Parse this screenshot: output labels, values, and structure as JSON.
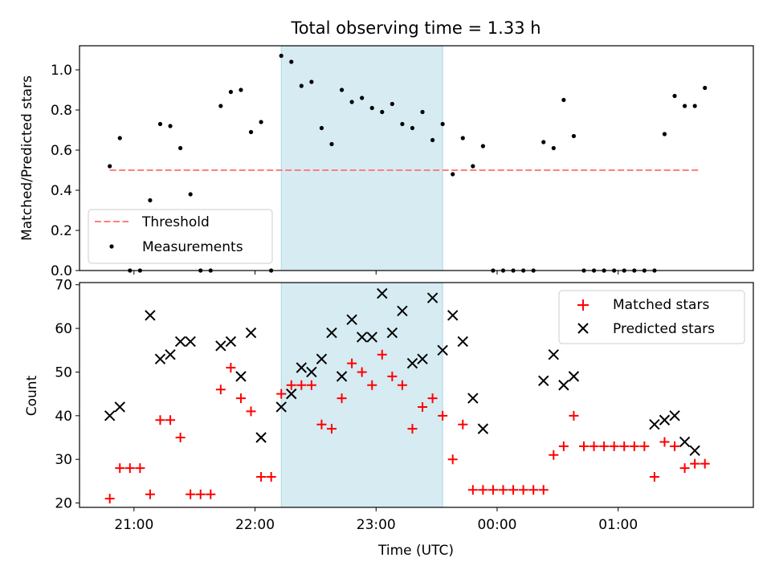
{
  "chart_data": [
    {
      "type": "scatter",
      "title": "Total observing time = 1.33 h",
      "ylabel": "Matched/Predicted stars",
      "xlim": [
        "20:33",
        "26:07"
      ],
      "ylim": [
        0,
        1.12
      ],
      "x_ticks": [
        "21:00",
        "22:00",
        "23:00",
        "00:00",
        "01:00"
      ],
      "y_ticks": [
        "0.0",
        "0.2",
        "0.4",
        "0.6",
        "0.8",
        "1.0"
      ],
      "highlight_span": [
        "22:13",
        "23:33"
      ],
      "highlight_color": "#add8e6",
      "legend_position": "lower-left",
      "threshold": {
        "name": "Threshold",
        "value": 0.5,
        "x_range": [
          "20:48",
          "25:41"
        ],
        "color": "#ff7f7f",
        "style": "dashed"
      },
      "series": [
        {
          "name": "Measurements",
          "color": "#000000",
          "marker": "dot",
          "x": [
            "20:48",
            "20:53",
            "20:58",
            "21:03",
            "21:08",
            "21:13",
            "21:18",
            "21:23",
            "21:28",
            "21:33",
            "21:38",
            "21:43",
            "21:48",
            "21:53",
            "21:58",
            "22:03",
            "22:08",
            "22:13",
            "22:18",
            "22:23",
            "22:28",
            "22:33",
            "22:38",
            "22:43",
            "22:48",
            "22:53",
            "22:58",
            "23:03",
            "23:08",
            "23:13",
            "23:18",
            "23:23",
            "23:28",
            "23:33",
            "23:38",
            "23:43",
            "23:48",
            "23:53",
            "23:58",
            "24:03",
            "24:08",
            "24:13",
            "24:18",
            "24:23",
            "24:28",
            "24:33",
            "24:38",
            "24:43",
            "24:48",
            "24:53",
            "24:58",
            "25:03",
            "25:08",
            "25:13",
            "25:18",
            "25:23",
            "25:28",
            "25:33",
            "25:38",
            "25:43"
          ],
          "y": [
            0.52,
            0.66,
            0.0,
            0.0,
            0.35,
            0.73,
            0.72,
            0.61,
            0.38,
            0.0,
            0.0,
            0.82,
            0.89,
            0.9,
            0.69,
            0.74,
            0.0,
            1.07,
            1.04,
            0.92,
            0.94,
            0.71,
            0.63,
            0.9,
            0.84,
            0.86,
            0.81,
            0.79,
            0.83,
            0.73,
            0.71,
            0.79,
            0.65,
            0.73,
            0.48,
            0.66,
            0.52,
            0.62,
            0.0,
            0.0,
            0.0,
            0.0,
            0.0,
            0.64,
            0.61,
            0.85,
            0.67,
            0.0,
            0.0,
            0.0,
            0.0,
            0.0,
            0.0,
            0.0,
            0.0,
            0.68,
            0.87,
            0.82,
            0.82,
            0.91
          ]
        }
      ]
    },
    {
      "type": "scatter",
      "xlabel": "Time (UTC)",
      "ylabel": "Count",
      "xlim": [
        "20:33",
        "26:07"
      ],
      "ylim": [
        19,
        70.5
      ],
      "x_ticks": [
        "21:00",
        "22:00",
        "23:00",
        "00:00",
        "01:00"
      ],
      "y_ticks": [
        "20",
        "30",
        "40",
        "50",
        "60",
        "70"
      ],
      "highlight_span": [
        "22:13",
        "23:33"
      ],
      "legend_position": "upper-right",
      "series": [
        {
          "name": "Matched stars",
          "color": "#ff0000",
          "marker": "plus",
          "x": [
            "20:48",
            "20:53",
            "20:58",
            "21:03",
            "21:08",
            "21:13",
            "21:18",
            "21:23",
            "21:28",
            "21:33",
            "21:38",
            "21:43",
            "21:48",
            "21:53",
            "21:58",
            "22:03",
            "22:08",
            "22:13",
            "22:18",
            "22:23",
            "22:28",
            "22:33",
            "22:38",
            "22:43",
            "22:48",
            "22:53",
            "22:58",
            "23:03",
            "23:08",
            "23:13",
            "23:18",
            "23:23",
            "23:28",
            "23:33",
            "23:38",
            "23:43",
            "23:48",
            "23:53",
            "23:58",
            "24:03",
            "24:08",
            "24:13",
            "24:18",
            "24:23",
            "24:28",
            "24:33",
            "24:38",
            "24:43",
            "24:48",
            "24:53",
            "24:58",
            "25:03",
            "25:08",
            "25:13",
            "25:18",
            "25:23",
            "25:28",
            "25:33",
            "25:38",
            "25:43"
          ],
          "y": [
            21,
            28,
            28,
            28,
            22,
            39,
            39,
            35,
            22,
            22,
            22,
            46,
            51,
            44,
            41,
            26,
            26,
            45,
            47,
            47,
            47,
            38,
            37,
            44,
            52,
            50,
            47,
            54,
            49,
            47,
            37,
            42,
            44,
            40,
            30,
            38,
            23,
            23,
            23,
            23,
            23,
            23,
            23,
            23,
            31,
            33,
            40,
            33,
            33,
            33,
            33,
            33,
            33,
            33,
            26,
            34,
            33,
            28,
            29,
            29
          ]
        },
        {
          "name": "Predicted stars",
          "color": "#000000",
          "marker": "x",
          "x": [
            "20:48",
            "20:53",
            "21:08",
            "21:13",
            "21:18",
            "21:23",
            "21:28",
            "21:43",
            "21:48",
            "21:53",
            "21:58",
            "22:03",
            "22:13",
            "22:18",
            "22:23",
            "22:28",
            "22:33",
            "22:38",
            "22:43",
            "22:48",
            "22:53",
            "22:58",
            "23:03",
            "23:08",
            "23:13",
            "23:18",
            "23:23",
            "23:28",
            "23:33",
            "23:38",
            "23:43",
            "23:48",
            "23:53",
            "24:23",
            "24:28",
            "24:33",
            "24:38",
            "25:18",
            "25:23",
            "25:28",
            "25:33",
            "25:38"
          ],
          "y": [
            40,
            42,
            63,
            53,
            54,
            57,
            57,
            56,
            57,
            49,
            59,
            35,
            42,
            45,
            51,
            50,
            53,
            59,
            49,
            62,
            58,
            58,
            68,
            59,
            64,
            52,
            53,
            67,
            55,
            63,
            57,
            44,
            37,
            48,
            54,
            47,
            49,
            38,
            39,
            40,
            34,
            32
          ]
        }
      ]
    }
  ]
}
